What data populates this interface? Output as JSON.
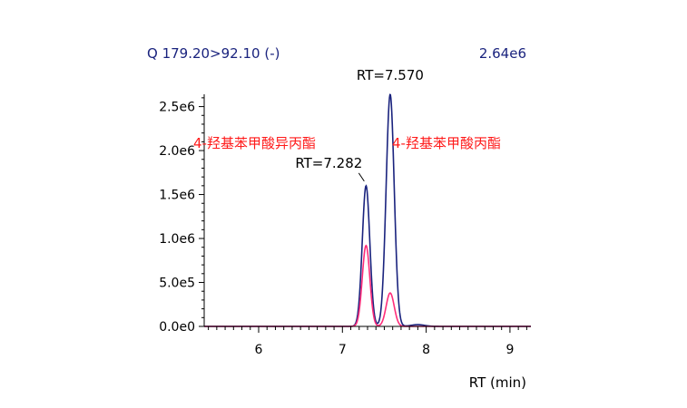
{
  "chart_data": {
    "type": "line",
    "header_left": "Q 179.20>92.10 (-)",
    "header_right": "2.64e6",
    "xlabel": "RT (min)",
    "ylabel": "",
    "xlim": [
      5.35,
      9.25
    ],
    "ylim": [
      0,
      2640000.0
    ],
    "x_ticks": [
      6,
      7,
      8,
      9
    ],
    "x_tick_labels": [
      "6",
      "7",
      "8",
      "9"
    ],
    "y_ticks": [
      0,
      500000,
      1000000,
      1500000,
      2000000,
      2500000
    ],
    "y_tick_labels": [
      "0.0e0",
      "5.0e5",
      "1.0e6",
      "1.5e6",
      "2.0e6",
      "2.5e6"
    ],
    "series": [
      {
        "color": "#1a237e",
        "peaks": [
          {
            "rt": 7.282,
            "height": 1600000,
            "sigma": 0.045
          },
          {
            "rt": 7.57,
            "height": 2640000,
            "sigma": 0.048
          },
          {
            "rt": 7.9,
            "height": 20000,
            "sigma": 0.08
          }
        ]
      },
      {
        "color": "#ff2d7a",
        "peaks": [
          {
            "rt": 7.282,
            "height": 920000,
            "sigma": 0.045
          },
          {
            "rt": 7.57,
            "height": 380000,
            "sigma": 0.048
          }
        ]
      }
    ],
    "annotations": [
      {
        "text": "RT=7.570",
        "x": 7.57,
        "y": 2640000
      },
      {
        "text": "RT=7.282",
        "x": 7.282,
        "y": 1600000
      }
    ],
    "compound_labels": [
      "4-羟基苯甲酸异丙酯",
      "4-羟基苯甲酸丙酯"
    ]
  }
}
